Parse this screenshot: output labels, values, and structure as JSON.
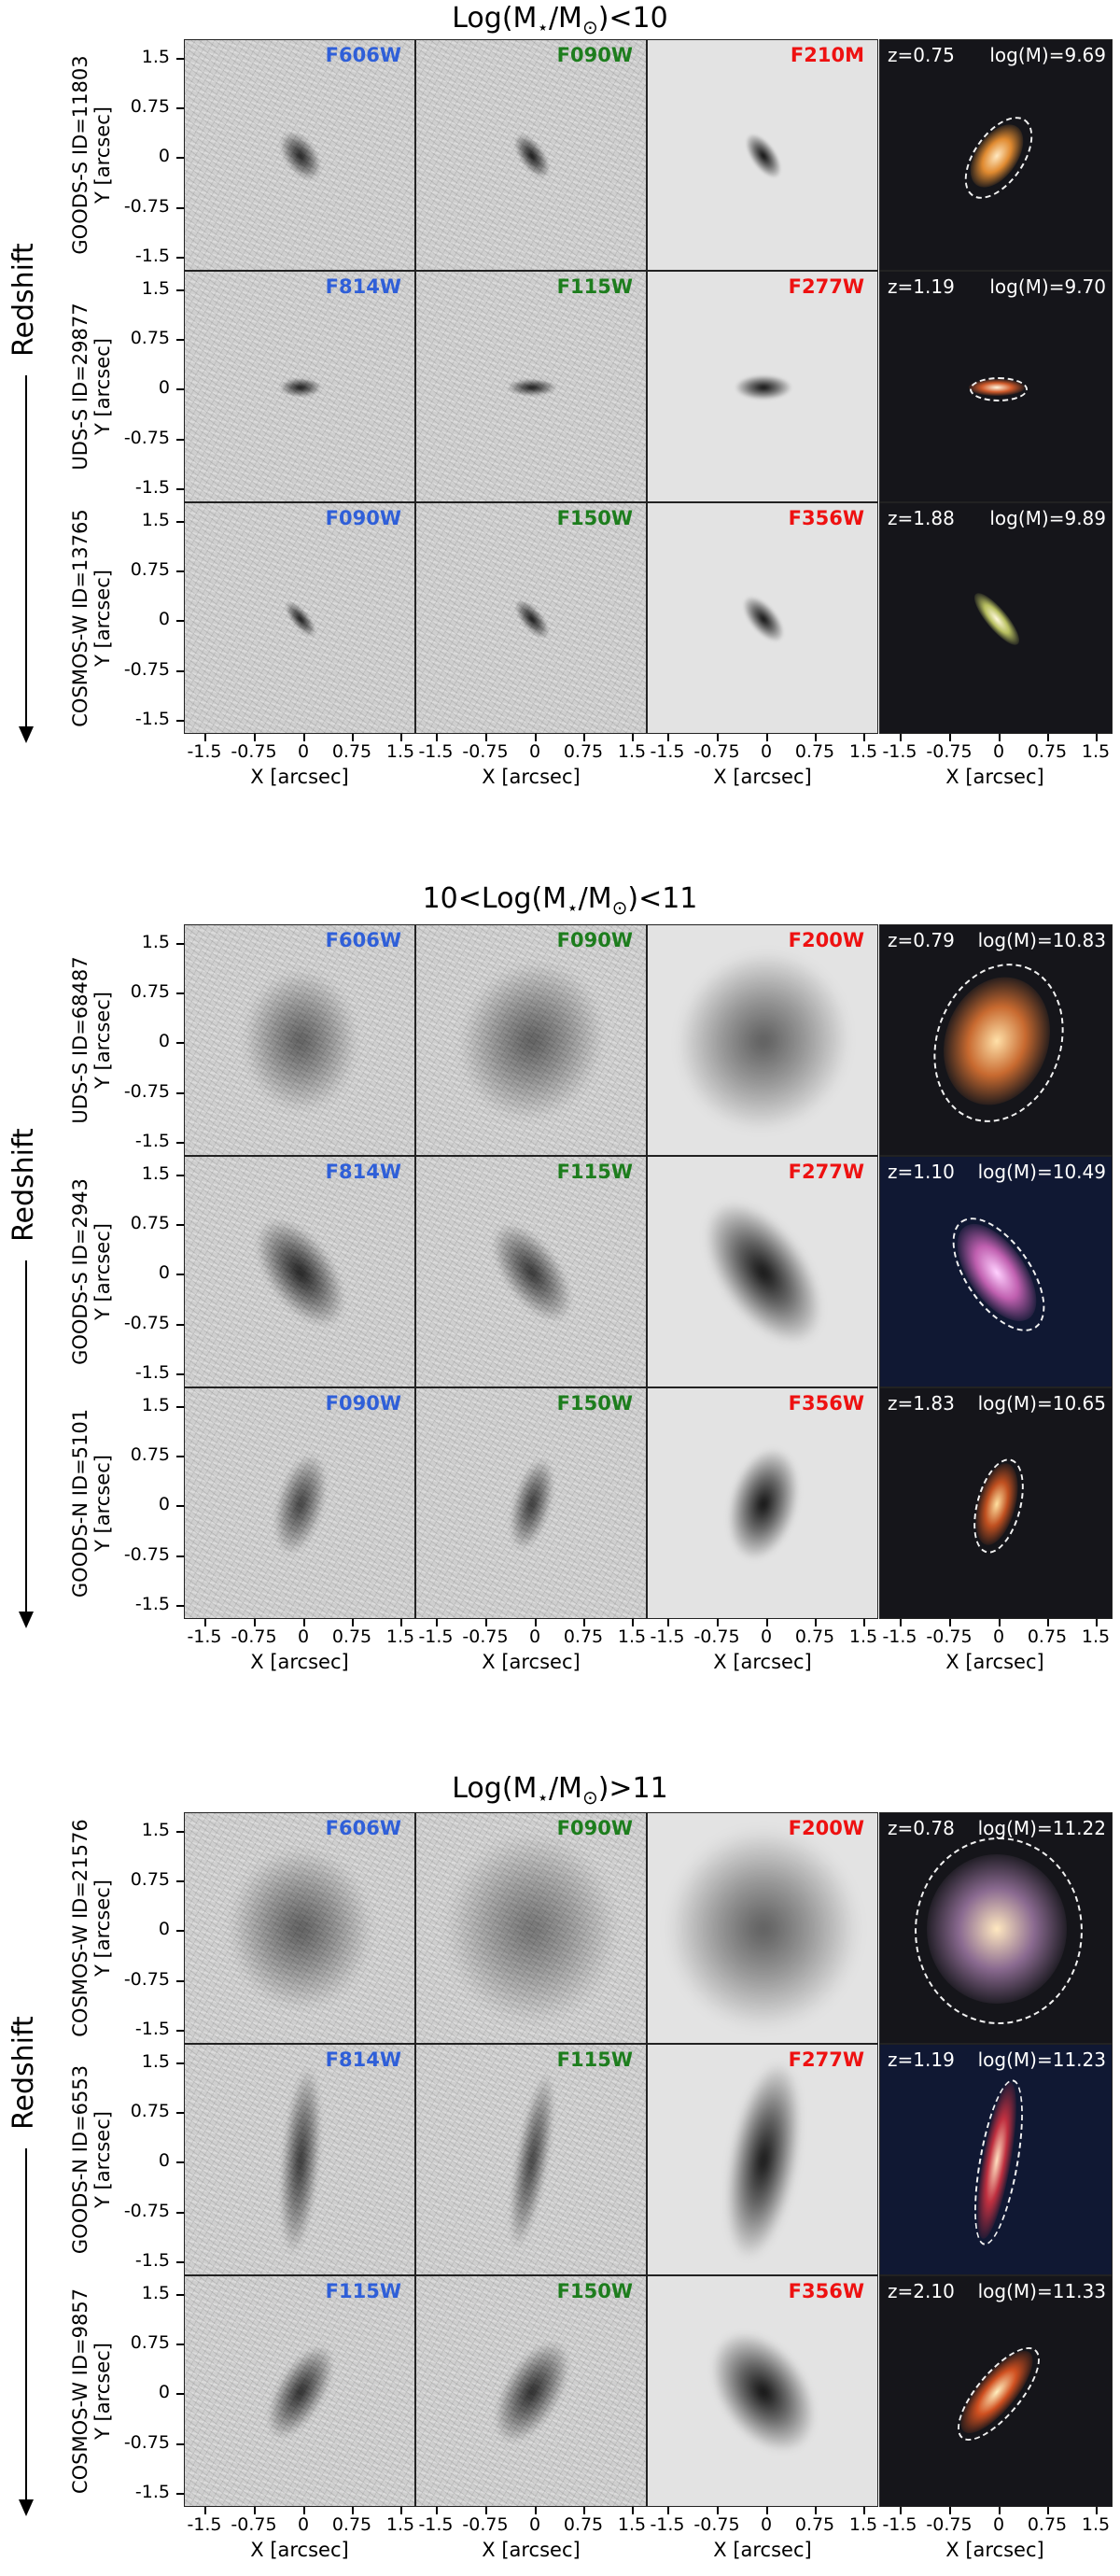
{
  "figure": {
    "redshift_label": "Redshift",
    "x_axis_label": "X [arcsec]",
    "y_axis_label": "Y [arcsec]",
    "y_ticks": [
      "1.5",
      "0.75",
      "0",
      "-0.75",
      "-1.5"
    ],
    "x_ticks": [
      "-1.5",
      "-0.75",
      "0",
      "0.75",
      "1.5"
    ],
    "blocks": [
      {
        "title_prefix": "Log(M",
        "title_star": "⋆",
        "title_mid": "/M",
        "title_sun": "⊙",
        "title_suffix": ")<10",
        "rows": [
          {
            "field": "GOODS-S",
            "id_text": "ID=11803",
            "filters": [
              "F606W",
              "F090W",
              "F210M"
            ],
            "z": "z=0.75",
            "logm": "log(M)=9.69"
          },
          {
            "field": "UDS-S",
            "id_text": "ID=29877",
            "filters": [
              "F814W",
              "F115W",
              "F277W"
            ],
            "z": "z=1.19",
            "logm": "log(M)=9.70"
          },
          {
            "field": "COSMOS-W",
            "id_text": "ID=13765",
            "filters": [
              "F090W",
              "F150W",
              "F356W"
            ],
            "z": "z=1.88",
            "logm": "log(M)=9.89"
          }
        ]
      },
      {
        "title_prefix": "10<Log(M",
        "title_star": "⋆",
        "title_mid": "/M",
        "title_sun": "⊙",
        "title_suffix": ")<11",
        "rows": [
          {
            "field": "UDS-S",
            "id_text": "ID=68487",
            "filters": [
              "F606W",
              "F090W",
              "F200W"
            ],
            "z": "z=0.79",
            "logm": "log(M)=10.83"
          },
          {
            "field": "GOODS-S",
            "id_text": "ID=2943",
            "filters": [
              "F814W",
              "F115W",
              "F277W"
            ],
            "z": "z=1.10",
            "logm": "log(M)=10.49"
          },
          {
            "field": "GOODS-N",
            "id_text": "ID=5101",
            "filters": [
              "F090W",
              "F150W",
              "F356W"
            ],
            "z": "z=1.83",
            "logm": "log(M)=10.65"
          }
        ]
      },
      {
        "title_prefix": "Log(M",
        "title_star": "⋆",
        "title_mid": "/M",
        "title_sun": "⊙",
        "title_suffix": ")>11",
        "rows": [
          {
            "field": "COSMOS-W",
            "id_text": "ID=21576",
            "filters": [
              "F606W",
              "F090W",
              "F200W"
            ],
            "z": "z=0.78",
            "logm": "log(M)=11.22"
          },
          {
            "field": "GOODS-N",
            "id_text": "ID=6553",
            "filters": [
              "F814W",
              "F115W",
              "F277W"
            ],
            "z": "z=1.19",
            "logm": "log(M)=11.23"
          },
          {
            "field": "COSMOS-W",
            "id_text": "ID=9857",
            "filters": [
              "F115W",
              "F150W",
              "F356W"
            ],
            "z": "z=2.10",
            "logm": "log(M)=11.33"
          }
        ]
      }
    ]
  }
}
